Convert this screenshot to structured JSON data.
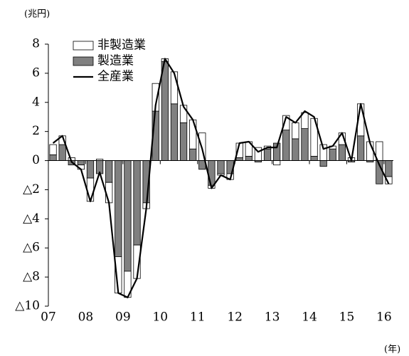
{
  "chart_data": {
    "type": "bar",
    "y_unit": "(兆円)",
    "x_unit": "(年)",
    "categories": [
      "07",
      null,
      null,
      null,
      "08",
      null,
      null,
      null,
      "09",
      null,
      null,
      null,
      "10",
      null,
      null,
      null,
      "11",
      null,
      null,
      null,
      "12",
      null,
      null,
      null,
      "13",
      null,
      null,
      null,
      "14",
      null,
      null,
      null,
      "15",
      null,
      null,
      null,
      "16"
    ],
    "series": [
      {
        "name": "非製造業",
        "type": "bar",
        "color": "#ffffff",
        "values": [
          0.7,
          0.6,
          0.2,
          -0.3,
          -1.6,
          0.1,
          -1.4,
          -2.5,
          -1.8,
          -2.3,
          -0.4,
          1.9,
          0.2,
          2.2,
          1.2,
          2.0,
          1.9,
          -0.2,
          -0.1,
          -0.4,
          1.0,
          1.0,
          0.9,
          0.2,
          -0.3,
          1.0,
          1.1,
          1.1,
          2.6,
          1.1,
          0.2,
          0.8,
          0.2,
          2.2,
          1.3,
          1.3,
          -0.5
        ]
      },
      {
        "name": "製造業",
        "type": "bar",
        "color": "#808080",
        "values": [
          0.4,
          1.1,
          -0.3,
          -0.3,
          -1.2,
          -0.9,
          -1.5,
          -6.6,
          -7.6,
          -5.8,
          -2.9,
          3.4,
          6.8,
          3.9,
          2.6,
          0.8,
          -0.6,
          -1.7,
          -0.9,
          -0.9,
          0.2,
          0.3,
          -0.1,
          0.8,
          1.2,
          2.1,
          1.5,
          2.2,
          0.3,
          -0.4,
          0.8,
          1.1,
          -0.1,
          1.7,
          -0.1,
          -1.6,
          -1.1
        ]
      },
      {
        "name": "全産業",
        "type": "line",
        "color": "#000000",
        "values": [
          1.2,
          1.7,
          -0.1,
          -0.6,
          -2.8,
          -0.8,
          -2.9,
          -9.1,
          -9.4,
          -8.1,
          -3.3,
          3.8,
          7.0,
          6.0,
          3.7,
          2.8,
          0.8,
          -1.9,
          -1.0,
          -1.3,
          1.2,
          1.3,
          0.6,
          0.9,
          0.9,
          3.0,
          2.6,
          3.4,
          3.0,
          0.8,
          1.0,
          1.9,
          0.0,
          3.9,
          1.2,
          -0.3,
          -1.6
        ]
      }
    ],
    "ylim": [
      -10,
      8
    ],
    "yticks": [
      8,
      6,
      4,
      2,
      0,
      {
        "value": -2,
        "label": "△2"
      },
      {
        "value": -4,
        "label": "△4"
      },
      {
        "value": -6,
        "label": "△6"
      },
      {
        "value": -8,
        "label": "△8"
      },
      {
        "value": -10,
        "label": "△10"
      }
    ]
  }
}
